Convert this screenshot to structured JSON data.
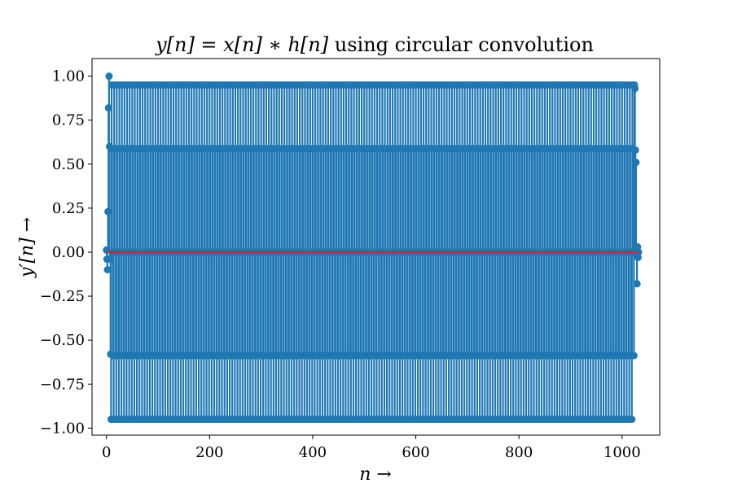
{
  "chart_data": {
    "type": "stem",
    "title": {
      "math": "y[n] = x[n] ∗ h[n]",
      "text": " using circular convolution"
    },
    "xlabel": "n →",
    "ylabel": "y′[n] →",
    "xlim": [
      -28,
      1073
    ],
    "ylim": [
      -1.04,
      1.1
    ],
    "xticks": [
      0,
      200,
      400,
      600,
      800,
      1000
    ],
    "xtick_labels": [
      "0",
      "200",
      "400",
      "600",
      "800",
      "1000"
    ],
    "yticks": [
      -1.0,
      -0.75,
      -0.5,
      -0.25,
      0.0,
      0.25,
      0.5,
      0.75,
      1.0
    ],
    "ytick_labels": [
      "−1.00",
      "−0.75",
      "−0.50",
      "−0.25",
      "0.00",
      "0.25",
      "0.50",
      "0.75",
      "1.00"
    ],
    "grid": false,
    "legend": "none",
    "series": [
      {
        "stem_color": "#1f77b4",
        "baseline_color": "#d62728",
        "pattern_period": 5,
        "pattern_values": [
          0.95,
          0.588,
          0.0,
          -0.588,
          -0.95
        ],
        "x_start": 0,
        "x_end": 1032,
        "edge_points": [
          {
            "x": 0,
            "y": 0.012
          },
          {
            "x": 1,
            "y": -0.04
          },
          {
            "x": 2,
            "y": -0.1
          },
          {
            "x": 3,
            "y": 0.23
          },
          {
            "x": 4,
            "y": 0.82
          },
          {
            "x": 5,
            "y": 1.0
          },
          {
            "x": 6,
            "y": 0.6
          },
          {
            "x": 7,
            "y": -0.04
          },
          {
            "x": 8,
            "y": -0.58
          },
          {
            "x": 1024,
            "y": 0.95
          },
          {
            "x": 1025,
            "y": 0.93
          },
          {
            "x": 1026,
            "y": 0.58
          },
          {
            "x": 1027,
            "y": 0.51
          },
          {
            "x": 1028,
            "y": -0.02
          },
          {
            "x": 1029,
            "y": -0.18
          },
          {
            "x": 1030,
            "y": 0.03
          },
          {
            "x": 1031,
            "y": -0.03
          },
          {
            "x": 1032,
            "y": 0.0
          }
        ]
      }
    ]
  }
}
